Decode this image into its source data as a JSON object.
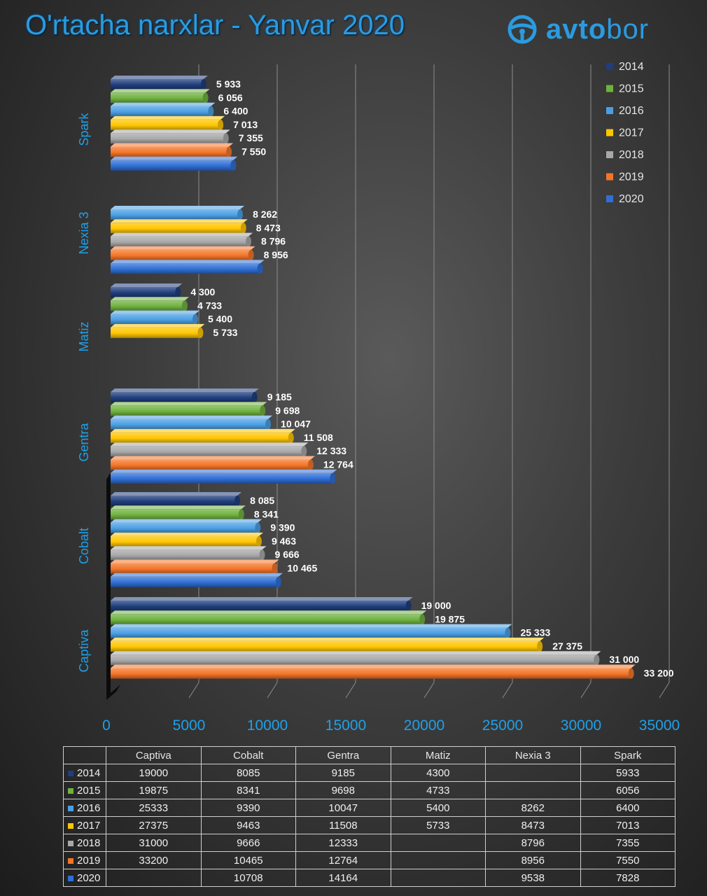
{
  "header": {
    "title": "O'rtacha narxlar - Yanvar 2020",
    "brand_bold": "avto",
    "brand_rest": "bor"
  },
  "colors": {
    "2014": "#1f3e7c",
    "2015": "#6fb23f",
    "2016": "#4a9fe4",
    "2017": "#ffc600",
    "2018": "#a8a8a8",
    "2019": "#f47528",
    "2020": "#2f6fd6",
    "axis_text": "#1ea1ea"
  },
  "chart_data": {
    "type": "bar",
    "orientation": "horizontal",
    "title": "O'rtacha narxlar - Yanvar 2020",
    "categories": [
      "Captiva",
      "Cobalt",
      "Gentra",
      "Matiz",
      "Nexia 3",
      "Spark"
    ],
    "series": [
      {
        "name": "2014",
        "values": [
          19000,
          8085,
          9185,
          4300,
          null,
          5933
        ]
      },
      {
        "name": "2015",
        "values": [
          19875,
          8341,
          9698,
          4733,
          null,
          6056
        ]
      },
      {
        "name": "2016",
        "values": [
          25333,
          9390,
          10047,
          5400,
          8262,
          6400
        ]
      },
      {
        "name": "2017",
        "values": [
          27375,
          9463,
          11508,
          5733,
          8473,
          7013
        ]
      },
      {
        "name": "2018",
        "values": [
          31000,
          9666,
          12333,
          null,
          8796,
          7355
        ]
      },
      {
        "name": "2019",
        "values": [
          33200,
          10465,
          12764,
          null,
          8956,
          7550
        ]
      },
      {
        "name": "2020",
        "values": [
          null,
          10708,
          14164,
          null,
          9538,
          7828
        ]
      }
    ],
    "bar_labels": {
      "Spark": [
        "5 933",
        "6 056",
        "6 400",
        "7 013",
        "7 355",
        "7 550"
      ],
      "Nexia 3": [
        "8 262",
        "8 473",
        "8 796",
        "8 956"
      ],
      "Matiz": [
        "4 300",
        "4 733",
        "5 400",
        "5 733"
      ],
      "Gentra": [
        "9 185",
        "9 698",
        "10 047",
        "11 508",
        "12 333",
        "12 764"
      ],
      "Cobalt": [
        "8 085",
        "8 341",
        "9 390",
        "9 463",
        "9 666",
        "10 465"
      ],
      "Captiva": [
        "19 000",
        "19 875",
        "25 333",
        "27 375",
        "31 000",
        "33 200"
      ]
    },
    "x_ticks": [
      "0",
      "5000",
      "10000",
      "15000",
      "20000",
      "25000",
      "30000",
      "35000"
    ],
    "xlim": [
      0,
      35000
    ],
    "grid": true,
    "legend": [
      "2014",
      "2015",
      "2016",
      "2017",
      "2018",
      "2019",
      "2020"
    ],
    "legend_position": "top-right",
    "data_table": {
      "columns": [
        "Captiva",
        "Cobalt",
        "Gentra",
        "Matiz",
        "Nexia 3",
        "Spark"
      ],
      "rows": [
        {
          "year": "2014",
          "cells": [
            "19000",
            "8085",
            "9185",
            "4300",
            "",
            "5933"
          ]
        },
        {
          "year": "2015",
          "cells": [
            "19875",
            "8341",
            "9698",
            "4733",
            "",
            "6056"
          ]
        },
        {
          "year": "2016",
          "cells": [
            "25333",
            "9390",
            "10047",
            "5400",
            "8262",
            "6400"
          ]
        },
        {
          "year": "2017",
          "cells": [
            "27375",
            "9463",
            "11508",
            "5733",
            "8473",
            "7013"
          ]
        },
        {
          "year": "2018",
          "cells": [
            "31000",
            "9666",
            "12333",
            "",
            "8796",
            "7355"
          ]
        },
        {
          "year": "2019",
          "cells": [
            "33200",
            "10465",
            "12764",
            "",
            "8956",
            "7550"
          ]
        },
        {
          "year": "2020",
          "cells": [
            "",
            "10708",
            "14164",
            "",
            "9538",
            "7828"
          ]
        }
      ]
    }
  }
}
